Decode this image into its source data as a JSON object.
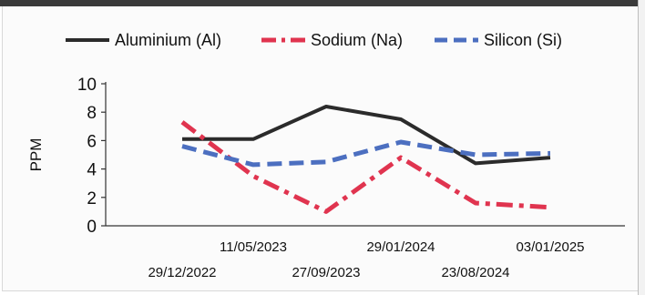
{
  "chart_data": {
    "type": "line",
    "ylabel": "PPM",
    "ylim": [
      0,
      10
    ],
    "yticks": [
      0,
      2,
      4,
      6,
      8,
      10
    ],
    "x_labels": [
      "29/12/2022",
      "11/05/2023",
      "27/09/2023",
      "29/01/2024",
      "23/08/2024",
      "03/01/2025"
    ],
    "grid": false,
    "legend_position": "top",
    "series": [
      {
        "name": "Aluminium (Al)",
        "color": "#2b2b2b",
        "style": "solid",
        "values": [
          6.1,
          6.1,
          8.4,
          7.5,
          4.4,
          4.8
        ]
      },
      {
        "name": "Sodium (Na)",
        "color": "#e0344f",
        "style": "dashdot",
        "values": [
          7.3,
          3.5,
          1.0,
          4.8,
          1.6,
          1.3
        ]
      },
      {
        "name": "Silicon (Si)",
        "color": "#4c6fc0",
        "style": "dashed",
        "values": [
          5.6,
          4.3,
          4.5,
          5.9,
          5.0,
          5.1
        ]
      }
    ]
  }
}
